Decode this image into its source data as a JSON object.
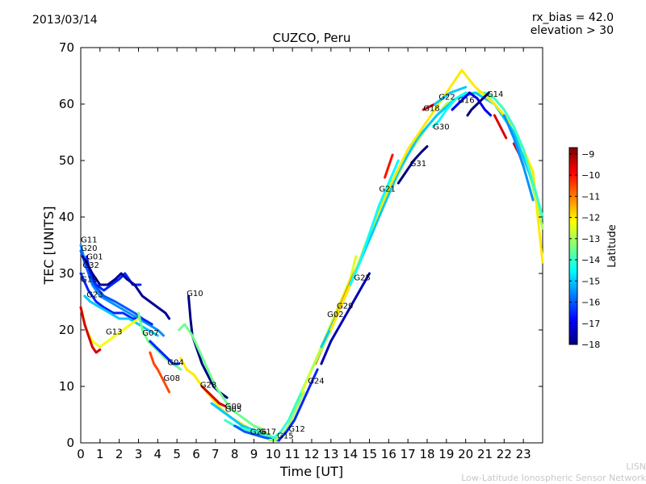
{
  "header": {
    "date": "2013/03/14",
    "rx_bias": "rx_bias = 42.0",
    "elevation": "elevation > 30"
  },
  "credit": {
    "short": "LISN",
    "long": "Low-Latitude Ionospheric Sensor Network"
  },
  "chart_data": {
    "type": "line",
    "title": "CUZCO, Peru",
    "xlabel": "Time [UT]",
    "ylabel": "TEC [UNITS]",
    "xlim": [
      0,
      24
    ],
    "ylim": [
      0,
      70
    ],
    "xticks": [
      0,
      1,
      2,
      3,
      4,
      5,
      6,
      7,
      8,
      9,
      10,
      11,
      12,
      13,
      14,
      15,
      16,
      17,
      18,
      19,
      20,
      21,
      22,
      23
    ],
    "yticks": [
      0,
      10,
      20,
      30,
      40,
      50,
      60,
      70
    ],
    "colorbar": {
      "label": "Latitude",
      "min": -18,
      "max": -8.7,
      "ticks": [
        -9,
        -10,
        -11,
        -12,
        -13,
        -14,
        -15,
        -16,
        -17,
        -18
      ],
      "colormap": [
        "#00007f",
        "#0000ff",
        "#007fff",
        "#00ffff",
        "#7fff7f",
        "#ffff00",
        "#ff7f00",
        "#ff0000",
        "#7f0000"
      ]
    },
    "series": [
      {
        "name": "G11",
        "lat": -15.5,
        "label_xy": [
          0.0,
          35.5
        ],
        "x": [
          0,
          0.3,
          0.6,
          1,
          1.5,
          2,
          2.5,
          3,
          3.5,
          4,
          4.3
        ],
        "y": [
          35,
          31,
          28,
          26,
          25,
          24,
          23,
          22,
          21,
          20,
          19
        ]
      },
      {
        "name": "G20",
        "lat": -16,
        "label_xy": [
          0.0,
          34.0
        ],
        "x": [
          0,
          0.3,
          0.7,
          1.2,
          1.8,
          2.3,
          2.8,
          3.2
        ],
        "y": [
          34,
          31,
          28,
          26,
          25,
          24,
          23,
          22
        ]
      },
      {
        "name": "G01",
        "lat": -16.5,
        "label_xy": [
          0.3,
          32.5
        ],
        "x": [
          0.3,
          0.5,
          0.8,
          1.2,
          1.6,
          2,
          2.3,
          2.7,
          3.1
        ],
        "y": [
          33,
          30,
          28,
          27,
          28,
          29,
          30,
          28,
          28
        ]
      },
      {
        "name": "G32",
        "lat": -17.8,
        "label_xy": [
          0.1,
          31.0
        ],
        "x": [
          0.1,
          0.3,
          0.6,
          1,
          1.4,
          1.8,
          2.1,
          2.4,
          2.8,
          3.2,
          3.6,
          4.0,
          4.4,
          4.6
        ],
        "y": [
          33,
          32,
          30,
          28,
          28,
          29,
          30,
          29,
          28,
          26,
          25,
          24,
          23,
          22
        ]
      },
      {
        "name": "G19",
        "lat": -16.5,
        "label_xy": [
          0.0,
          28.5
        ],
        "x": [
          0,
          0.4,
          0.8,
          1.2,
          1.7,
          2.2,
          2.7,
          3.2,
          3.7
        ],
        "y": [
          30,
          27,
          25,
          24,
          23,
          23,
          22,
          22,
          21
        ]
      },
      {
        "name": "G23",
        "lat": -15,
        "label_xy": [
          0.3,
          25.8
        ],
        "x": [
          0.2,
          0.5,
          1,
          1.5,
          2,
          2.5,
          3,
          3.5,
          4
        ],
        "y": [
          26,
          25,
          24,
          23,
          22,
          22,
          21,
          20,
          19
        ]
      },
      {
        "name": "G13",
        "lat": -12.3,
        "label_xy": [
          1.3,
          19.2
        ],
        "x": [
          0,
          0.3,
          0.6,
          1,
          1.4,
          1.8,
          2.2,
          2.6,
          3.0
        ],
        "y": [
          24,
          20,
          18,
          17,
          18,
          19,
          20,
          21,
          22
        ]
      },
      {
        "name": "G_red1",
        "lat": -9.5,
        "label_xy": null,
        "x": [
          0,
          0.2,
          0.4,
          0.6,
          0.8,
          1.0
        ],
        "y": [
          24,
          21,
          19,
          17,
          16,
          16.5
        ]
      },
      {
        "name": "G07",
        "lat": -13.5,
        "label_xy": [
          3.2,
          19.0
        ],
        "x": [
          3.0,
          3.2,
          3.5,
          3.8,
          4.1,
          4.4,
          4.8,
          5.2
        ],
        "y": [
          23,
          20,
          18,
          17,
          16,
          15,
          14,
          13
        ]
      },
      {
        "name": "G04",
        "lat": -16.5,
        "label_xy": [
          4.5,
          13.8
        ],
        "x": [
          3.6,
          3.9,
          4.2,
          4.5,
          4.8,
          5.1
        ],
        "y": [
          18,
          17,
          16,
          15,
          14,
          14
        ]
      },
      {
        "name": "G08",
        "lat": -10.5,
        "label_xy": [
          4.3,
          11.0
        ],
        "x": [
          3.6,
          3.8,
          4.0,
          4.3,
          4.6
        ],
        "y": [
          16,
          14,
          13,
          11,
          9
        ]
      },
      {
        "name": "G10",
        "lat": -18,
        "label_xy": [
          5.5,
          26.0
        ],
        "x": [
          5.6,
          5.7,
          5.8,
          6.0,
          6.3,
          6.6,
          6.9,
          7.2,
          7.6
        ],
        "y": [
          26,
          22,
          19,
          17,
          14,
          12,
          10,
          9,
          8
        ]
      },
      {
        "name": "G28",
        "lat": -13.5,
        "label_xy": [
          6.2,
          9.8
        ],
        "x": [
          5.1,
          5.4,
          5.8,
          6.2,
          6.6,
          7,
          7.4,
          7.8,
          8.2,
          8.6,
          9.0,
          9.4
        ],
        "y": [
          20,
          21,
          19,
          16,
          13,
          10,
          8,
          6,
          5,
          4,
          3,
          2.5
        ]
      },
      {
        "name": "G_yel",
        "lat": -12,
        "label_xy": null,
        "x": [
          5.2,
          5.5,
          5.9,
          6.3,
          6.8,
          7.3,
          7.8,
          8.3,
          8.8,
          9.3,
          9.8
        ],
        "y": [
          15,
          13,
          12,
          10,
          8,
          6,
          4.5,
          3.5,
          2.5,
          2,
          1.5
        ]
      },
      {
        "name": "G09",
        "lat": -9.5,
        "label_xy": [
          7.5,
          6.0
        ],
        "x": [
          6.3,
          6.6,
          6.9,
          7.2,
          7.5
        ],
        "y": [
          10,
          9,
          8,
          7,
          6.5
        ]
      },
      {
        "name": "G05",
        "lat": -15,
        "label_xy": [
          7.5,
          5.5
        ],
        "x": [
          6.8,
          7.2,
          7.6,
          8,
          8.4,
          8.8,
          9.2,
          9.6,
          10.0
        ],
        "y": [
          7,
          6,
          5,
          4,
          3,
          2.5,
          2,
          1.5,
          1
        ]
      },
      {
        "name": "G26",
        "lat": -14,
        "label_xy": [
          8.8,
          1.5
        ],
        "x": [
          7.5,
          8,
          8.5,
          9,
          9.5,
          10,
          10.3
        ],
        "y": [
          4,
          3,
          2.5,
          2,
          1.5,
          1,
          0.7
        ]
      },
      {
        "name": "G17",
        "lat": -16,
        "label_xy": [
          9.3,
          1.5
        ],
        "x": [
          8,
          8.5,
          9,
          9.5,
          10,
          10.3
        ],
        "y": [
          3,
          2,
          1.5,
          1,
          0.6,
          0.4
        ]
      },
      {
        "name": "G15",
        "lat": -13,
        "label_xy": [
          10.2,
          0.8
        ],
        "x": [
          9.8,
          10.1,
          10.4,
          10.8,
          11.2,
          11.6
        ],
        "y": [
          0.5,
          0.5,
          1,
          3,
          6,
          9
        ]
      },
      {
        "name": "G12",
        "lat": -14,
        "label_xy": [
          10.8,
          2.0
        ],
        "x": [
          10.0,
          10.4,
          10.8,
          11.2,
          11.6,
          12.0
        ],
        "y": [
          0.8,
          2,
          4,
          7,
          10,
          13
        ]
      },
      {
        "name": "G24",
        "lat": -16.5,
        "label_xy": [
          11.8,
          10.5
        ],
        "x": [
          10.3,
          10.7,
          11.1,
          11.5,
          11.9,
          12.3
        ],
        "y": [
          0.5,
          2,
          4,
          7,
          10,
          13
        ]
      },
      {
        "name": "G02",
        "lat": -12.5,
        "label_xy": [
          12.8,
          22.3
        ],
        "x": [
          11.5,
          12,
          12.5,
          13,
          13.5,
          14,
          14.3
        ],
        "y": [
          9,
          13,
          17,
          21,
          25,
          29,
          33
        ]
      },
      {
        "name": "G29",
        "lat": -11,
        "label_xy": [
          13.3,
          23.8
        ],
        "x": [
          12.2,
          12.7,
          13.2,
          13.7,
          14.2,
          14.6
        ],
        "y": [
          14,
          18,
          22,
          26,
          30,
          33
        ]
      },
      {
        "name": "G25",
        "lat": -17.5,
        "label_xy": [
          14.2,
          28.8
        ],
        "x": [
          12.5,
          13,
          13.5,
          14,
          14.5,
          15
        ],
        "y": [
          14,
          18,
          21,
          24,
          27,
          30
        ]
      },
      {
        "name": "G_asc1",
        "lat": -13,
        "label_xy": null,
        "x": [
          12,
          13,
          14,
          15,
          16,
          17,
          18,
          19,
          20,
          21,
          22,
          23,
          24
        ],
        "y": [
          13,
          20,
          28,
          36,
          44,
          51,
          56,
          60,
          62,
          62,
          58,
          52,
          38
        ]
      },
      {
        "name": "G_asc2",
        "lat": -15,
        "label_xy": null,
        "x": [
          12.5,
          13.5,
          14.5,
          15.5,
          16.5,
          17.5,
          18.5,
          19.5,
          20.5,
          21.5,
          22.5,
          23.5,
          24
        ],
        "y": [
          17,
          24,
          32,
          40,
          48,
          54,
          58,
          61,
          62,
          60,
          55,
          46,
          40
        ]
      },
      {
        "name": "G_asc3",
        "lat": -12,
        "label_xy": null,
        "x": [
          13,
          14,
          15,
          16,
          17,
          18,
          19,
          19.8,
          20.5,
          21.5,
          22.5,
          23.5,
          24
        ],
        "y": [
          20,
          28,
          37,
          45,
          52,
          57,
          62,
          66,
          63,
          60,
          56,
          48,
          32
        ]
      },
      {
        "name": "G21",
        "lat": -14.5,
        "label_xy": [
          15.5,
          44.5
        ],
        "x": [
          14,
          14.5,
          15,
          15.5,
          16,
          16.5
        ],
        "y": [
          28,
          32,
          37,
          42,
          46,
          50
        ]
      },
      {
        "name": "G_red2",
        "lat": -10,
        "label_xy": null,
        "x": [
          15.8,
          16.0,
          16.2
        ],
        "y": [
          47,
          49,
          51
        ]
      },
      {
        "name": "G31",
        "lat": -18,
        "label_xy": [
          17.1,
          49.0
        ],
        "x": [
          16.5,
          16.9,
          17.3,
          17.7,
          18.0
        ],
        "y": [
          46,
          48,
          50,
          51.5,
          52.5
        ]
      },
      {
        "name": "G18",
        "lat": -9.5,
        "label_xy": [
          17.8,
          58.8
        ],
        "x": [
          17.8,
          18.1,
          18.4
        ],
        "y": [
          59,
          59.5,
          60
        ]
      },
      {
        "name": "G22",
        "lat": -15,
        "label_xy": [
          18.6,
          60.8
        ],
        "x": [
          18.4,
          18.8,
          19.2,
          19.6,
          20.0
        ],
        "y": [
          60,
          61,
          62,
          62.5,
          63
        ]
      },
      {
        "name": "G30",
        "lat": -14.5,
        "label_xy": [
          18.3,
          55.5
        ],
        "x": [
          18.3,
          18.6,
          19,
          19.5,
          20
        ],
        "y": [
          56,
          57,
          59,
          61,
          62
        ]
      },
      {
        "name": "G16",
        "lat": -17,
        "label_xy": [
          19.6,
          60.2
        ],
        "x": [
          19.3,
          19.6,
          19.9,
          20.2,
          20.6,
          21,
          21.3
        ],
        "y": [
          59,
          60,
          61,
          62,
          61,
          59,
          58
        ]
      },
      {
        "name": "G14",
        "lat": -14,
        "label_xy": [
          21.1,
          61.3
        ],
        "x": [
          21,
          21.5,
          22,
          22.5,
          23,
          23.5,
          24
        ],
        "y": [
          62,
          61,
          59,
          56,
          52,
          46,
          40
        ]
      },
      {
        "name": "G_dkblue",
        "lat": -18,
        "label_xy": null,
        "x": [
          20.1,
          20.3,
          20.6,
          20.9,
          21.2
        ],
        "y": [
          58,
          59,
          60,
          61,
          62
        ]
      },
      {
        "name": "G_red3",
        "lat": -9.5,
        "label_xy": null,
        "x": [
          21.5,
          21.8,
          22.1
        ],
        "y": [
          58,
          56,
          54
        ]
      },
      {
        "name": "G_red4",
        "lat": -9.5,
        "label_xy": null,
        "x": [
          22.5,
          22.8,
          23.0
        ],
        "y": [
          53,
          51,
          49
        ]
      },
      {
        "name": "G_tealend",
        "lat": -15.5,
        "label_xy": null,
        "x": [
          22,
          22.5,
          23,
          23.5
        ],
        "y": [
          58,
          54,
          49,
          43
        ]
      }
    ]
  }
}
